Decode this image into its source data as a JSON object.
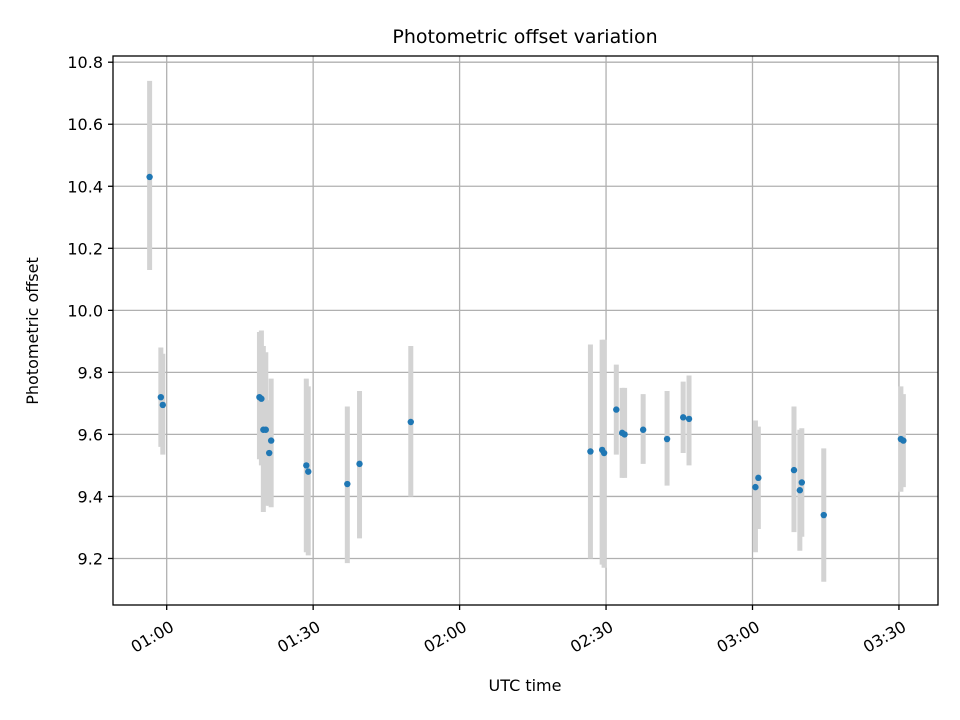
{
  "chart_data": {
    "type": "scatter",
    "title": "Photometric offset variation",
    "xlabel": "UTC time",
    "ylabel": "Photometric offset",
    "x_ticks": [
      "01:00",
      "01:30",
      "02:00",
      "02:30",
      "03:00",
      "03:30"
    ],
    "y_ticks": [
      "9.2",
      "9.4",
      "9.6",
      "9.8",
      "10.0",
      "10.2",
      "10.4",
      "10.6",
      "10.8"
    ],
    "xlim": [
      "00:49",
      "03:38"
    ],
    "ylim": [
      9.05,
      10.82
    ],
    "grid": true,
    "colors": {
      "point": "#1f77b4",
      "errorbar": "#d3d3d3",
      "grid": "#b0b0b0"
    },
    "points": [
      {
        "x": "00:56.5",
        "y": 10.43,
        "lo": 10.13,
        "hi": 10.74
      },
      {
        "x": "00:58.8",
        "y": 9.72,
        "lo": 9.56,
        "hi": 9.88
      },
      {
        "x": "00:59.2",
        "y": 9.695,
        "lo": 9.535,
        "hi": 9.86
      },
      {
        "x": "01:19.0",
        "y": 9.72,
        "lo": 9.52,
        "hi": 9.93
      },
      {
        "x": "01:19.4",
        "y": 9.715,
        "lo": 9.5,
        "hi": 9.935
      },
      {
        "x": "01:19.8",
        "y": 9.615,
        "lo": 9.35,
        "hi": 9.885
      },
      {
        "x": "01:20.3",
        "y": 9.615,
        "lo": 9.37,
        "hi": 9.865
      },
      {
        "x": "01:21.0",
        "y": 9.54,
        "lo": 9.37,
        "hi": 9.71
      },
      {
        "x": "01:21.4",
        "y": 9.58,
        "lo": 9.365,
        "hi": 9.78
      },
      {
        "x": "01:28.6",
        "y": 9.5,
        "lo": 9.22,
        "hi": 9.78
      },
      {
        "x": "01:29.0",
        "y": 9.48,
        "lo": 9.21,
        "hi": 9.755
      },
      {
        "x": "01:37.0",
        "y": 9.44,
        "lo": 9.185,
        "hi": 9.69
      },
      {
        "x": "01:39.5",
        "y": 9.505,
        "lo": 9.265,
        "hi": 9.74
      },
      {
        "x": "01:50.0",
        "y": 9.64,
        "lo": 9.4,
        "hi": 9.885
      },
      {
        "x": "02:26.8",
        "y": 9.545,
        "lo": 9.2,
        "hi": 9.89
      },
      {
        "x": "02:29.2",
        "y": 9.55,
        "lo": 9.18,
        "hi": 9.905
      },
      {
        "x": "02:29.6",
        "y": 9.54,
        "lo": 9.17,
        "hi": 9.905
      },
      {
        "x": "02:32.1",
        "y": 9.68,
        "lo": 9.535,
        "hi": 9.825
      },
      {
        "x": "02:33.3",
        "y": 9.605,
        "lo": 9.46,
        "hi": 9.75
      },
      {
        "x": "02:33.8",
        "y": 9.6,
        "lo": 9.46,
        "hi": 9.75
      },
      {
        "x": "02:37.6",
        "y": 9.615,
        "lo": 9.505,
        "hi": 9.73
      },
      {
        "x": "02:42.5",
        "y": 9.585,
        "lo": 9.435,
        "hi": 9.74
      },
      {
        "x": "02:45.8",
        "y": 9.655,
        "lo": 9.54,
        "hi": 9.77
      },
      {
        "x": "02:47.0",
        "y": 9.65,
        "lo": 9.5,
        "hi": 9.79
      },
      {
        "x": "03:00.6",
        "y": 9.43,
        "lo": 9.22,
        "hi": 9.645
      },
      {
        "x": "03:01.2",
        "y": 9.46,
        "lo": 9.295,
        "hi": 9.625
      },
      {
        "x": "03:08.5",
        "y": 9.485,
        "lo": 9.285,
        "hi": 9.69
      },
      {
        "x": "03:09.7",
        "y": 9.42,
        "lo": 9.225,
        "hi": 9.615
      },
      {
        "x": "03:10.1",
        "y": 9.445,
        "lo": 9.27,
        "hi": 9.62
      },
      {
        "x": "03:14.6",
        "y": 9.34,
        "lo": 9.125,
        "hi": 9.555
      },
      {
        "x": "03:30.4",
        "y": 9.585,
        "lo": 9.415,
        "hi": 9.755
      },
      {
        "x": "03:30.9",
        "y": 9.58,
        "lo": 9.43,
        "hi": 9.73
      }
    ]
  }
}
